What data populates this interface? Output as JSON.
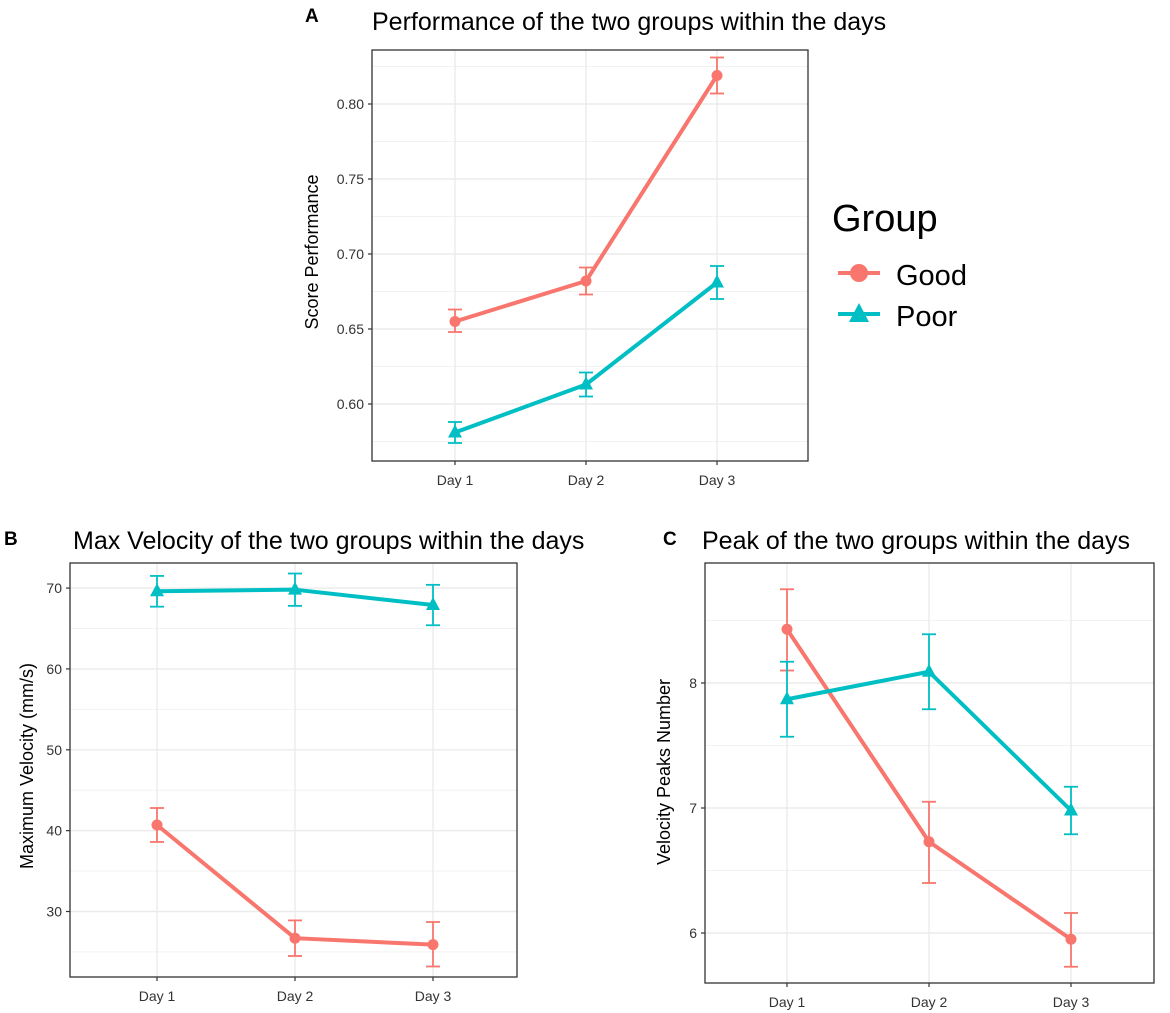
{
  "colors": {
    "good": "#F8766D",
    "poor": "#00BFC4",
    "grid": "#EBEBEB",
    "border": "#333333"
  },
  "legend": {
    "title": "Group",
    "entries": [
      {
        "label": "Good",
        "shape": "circle",
        "color": "#F8766D"
      },
      {
        "label": "Poor",
        "shape": "triangle",
        "color": "#00BFC4"
      }
    ]
  },
  "chart_data": [
    {
      "panel": "A",
      "type": "line",
      "title": "Performance of the two groups within the days",
      "xlabel": "",
      "ylabel": "Score Performance",
      "categories": [
        "Day 1",
        "Day 2",
        "Day 3"
      ],
      "ylim": [
        0.562,
        0.836
      ],
      "yticks": [
        0.6,
        0.65,
        0.7,
        0.75,
        0.8
      ],
      "ytick_labels": [
        "0.60",
        "0.65",
        "0.70",
        "0.75",
        "0.80"
      ],
      "series": [
        {
          "name": "Good",
          "marker": "circle",
          "values": [
            0.655,
            0.682,
            0.819
          ],
          "err_low": [
            0.648,
            0.673,
            0.807
          ],
          "err_high": [
            0.663,
            0.691,
            0.831
          ]
        },
        {
          "name": "Poor",
          "marker": "triangle",
          "values": [
            0.581,
            0.613,
            0.681
          ],
          "err_low": [
            0.574,
            0.605,
            0.67
          ],
          "err_high": [
            0.588,
            0.621,
            0.692
          ]
        }
      ]
    },
    {
      "panel": "B",
      "type": "line",
      "title": "Max Velocity of the two groups within the days",
      "xlabel": "",
      "ylabel": "Maximum Velocity (mm/s)",
      "categories": [
        "Day 1",
        "Day 2",
        "Day 3"
      ],
      "ylim": [
        21.9,
        73.1
      ],
      "yticks": [
        30,
        40,
        50,
        60,
        70
      ],
      "ytick_labels": [
        "30",
        "40",
        "50",
        "60",
        "70"
      ],
      "series": [
        {
          "name": "Good",
          "marker": "circle",
          "values": [
            40.7,
            26.7,
            25.9
          ],
          "err_low": [
            38.6,
            24.5,
            23.2
          ],
          "err_high": [
            42.8,
            28.9,
            28.7
          ]
        },
        {
          "name": "Poor",
          "marker": "triangle",
          "values": [
            69.6,
            69.8,
            67.9
          ],
          "err_low": [
            67.7,
            67.8,
            65.4
          ],
          "err_high": [
            71.5,
            71.8,
            70.4
          ]
        }
      ]
    },
    {
      "panel": "C",
      "type": "line",
      "title": "Peak of the two groups within the days",
      "xlabel": "",
      "ylabel": "Velocity Peaks Number",
      "categories": [
        "Day 1",
        "Day 2",
        "Day 3"
      ],
      "ylim": [
        5.6,
        8.96
      ],
      "yticks": [
        6,
        7,
        8
      ],
      "ytick_labels": [
        "6",
        "7",
        "8"
      ],
      "series": [
        {
          "name": "Good",
          "marker": "circle",
          "values": [
            8.43,
            6.73,
            5.95
          ],
          "err_low": [
            8.1,
            6.4,
            5.73
          ],
          "err_high": [
            8.75,
            7.05,
            6.16
          ]
        },
        {
          "name": "Poor",
          "marker": "triangle",
          "values": [
            7.87,
            8.09,
            6.98
          ],
          "err_low": [
            7.57,
            7.79,
            6.79
          ],
          "err_high": [
            8.17,
            8.39,
            7.17
          ]
        }
      ]
    }
  ]
}
